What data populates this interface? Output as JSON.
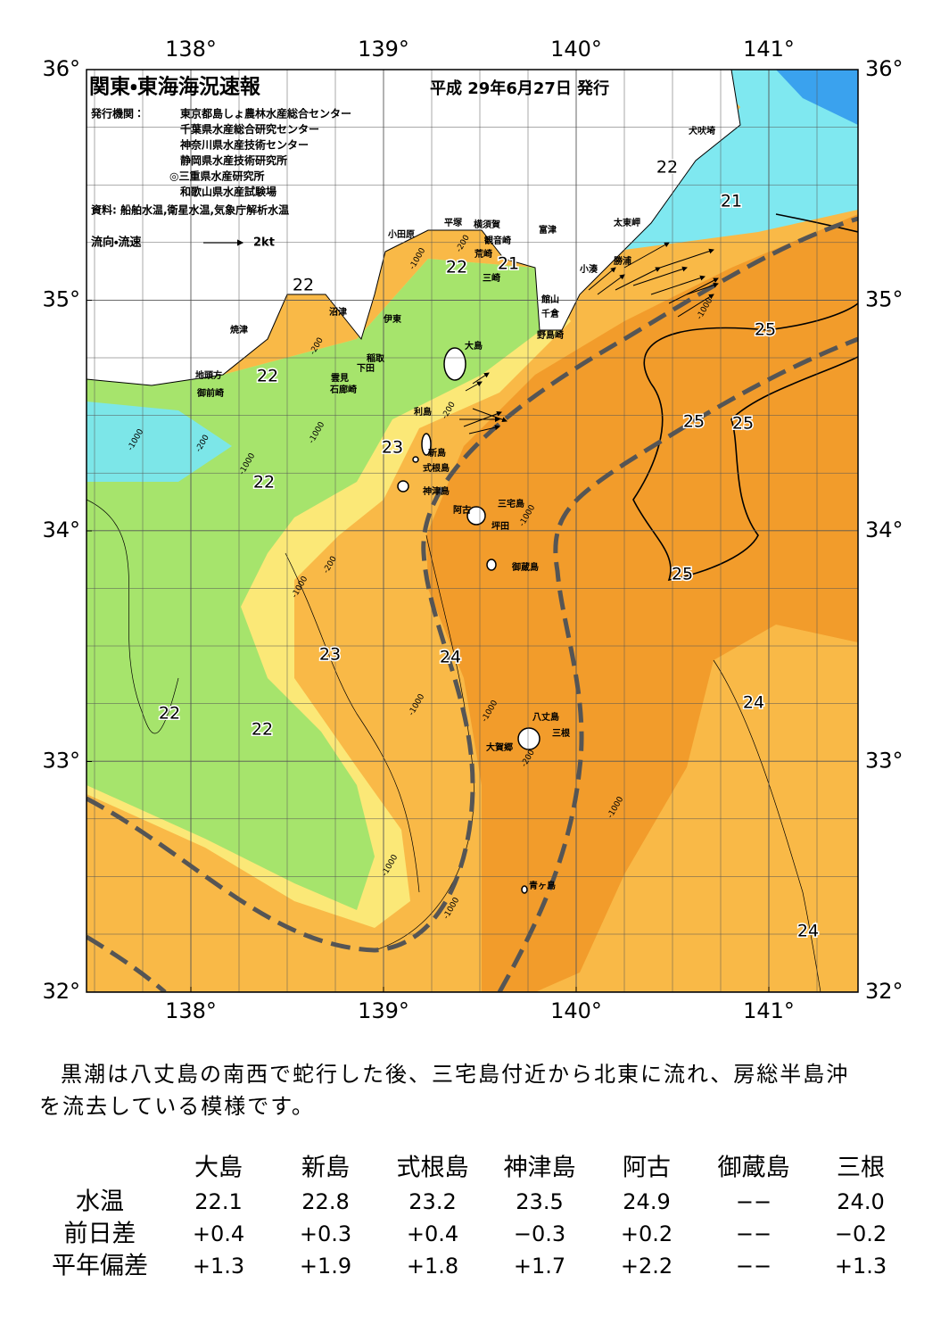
{
  "header": {
    "title": "関東・東海海況速報",
    "date": "平成 29年6月27日 発行",
    "issuer_label": "発行機関：",
    "issuers": [
      "東京都島しょ農林水産総合センター",
      "千葉県水産総合研究センター",
      "神奈川県水産技術センター",
      "静岡県水産技術研究所",
      "◎三重県水産研究所",
      "和歌山県水産試験場"
    ],
    "source": "資料: 船舶水温,衛星水温,気象庁解析水温",
    "legend_label": "流向・流速",
    "legend_scale": "2kt"
  },
  "map": {
    "lon_ticks": [
      {
        "value": 138,
        "label": "138°"
      },
      {
        "value": 139,
        "label": "139°"
      },
      {
        "value": 140,
        "label": "140°"
      },
      {
        "value": 141,
        "label": "141°"
      }
    ],
    "lat_ticks": [
      {
        "value": 36,
        "label": "36°"
      },
      {
        "value": 35,
        "label": "35°"
      },
      {
        "value": 34,
        "label": "34°"
      },
      {
        "value": 33,
        "label": "33°"
      },
      {
        "value": 32,
        "label": "32°"
      }
    ],
    "place_names": [
      "犬吠埼",
      "太東岬",
      "勝浦",
      "小湊",
      "富津",
      "館山",
      "千倉",
      "野島崎",
      "横須賀",
      "観音崎",
      "荒崎",
      "三崎",
      "平塚",
      "小田原",
      "沼津",
      "伊東",
      "稲取",
      "下田",
      "雲見",
      "石廊崎",
      "焼津",
      "地頭方",
      "御前崎",
      "大島",
      "利島",
      "新島",
      "式根島",
      "神津島",
      "三宅島",
      "阿古",
      "坪田",
      "御蔵島",
      "八丈島",
      "三根",
      "大賀郷",
      "青ヶ島"
    ],
    "temperature_labels": [
      "22",
      "21",
      "22",
      "21",
      "22",
      "25",
      "22",
      "25",
      "25",
      "23",
      "22",
      "25",
      "23",
      "24",
      "22",
      "22",
      "24",
      "24"
    ],
    "depth_labels": [
      "-200",
      "-1000",
      "-200",
      "-1000",
      "-200",
      "-1000",
      "-1000",
      "-200",
      "-1000",
      "-1000",
      "-1000",
      "-200",
      "-1000",
      "-1000",
      "-1000",
      "-1000",
      "-1000",
      "-200"
    ]
  },
  "description": "黒潮は八丈島の南西で蛇行した後、三宅島付近から北東に流れ、房総半島沖を流去している模様です。",
  "table": {
    "header": [
      "大島",
      "新島",
      "式根島",
      "神津島",
      "阿古",
      "御蔵島",
      "三根"
    ],
    "rows": [
      {
        "label": "水温",
        "values": [
          "22.1",
          "22.8",
          "23.2",
          "23.5",
          "24.9",
          "−−",
          "24.0"
        ]
      },
      {
        "label": "前日差",
        "values": [
          "+0.4",
          "+0.3",
          "+0.4",
          "−0.3",
          "+0.2",
          "−−",
          "−0.2"
        ]
      },
      {
        "label": "平年偏差",
        "values": [
          "+1.3",
          "+1.9",
          "+1.8",
          "+1.7",
          "+2.2",
          "−−",
          "+1.3"
        ]
      }
    ]
  }
}
